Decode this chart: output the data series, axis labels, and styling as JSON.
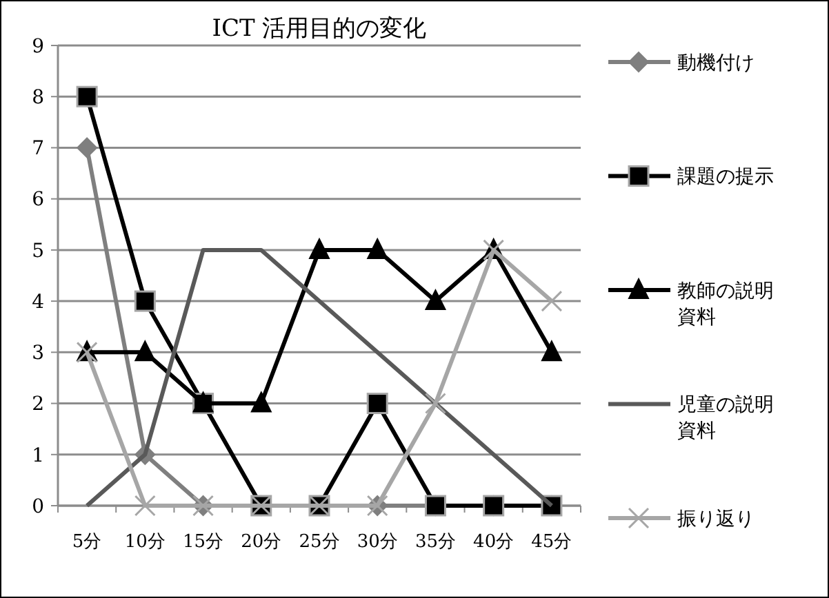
{
  "chart_data": {
    "type": "line",
    "title": "ICT 活用目的の変化",
    "categories": [
      "5分",
      "10分",
      "15分",
      "20分",
      "25分",
      "30分",
      "35分",
      "40分",
      "45分"
    ],
    "series": [
      {
        "name": "動機付け",
        "color": "#7f7f7f",
        "marker": "diamond",
        "values": [
          7,
          1,
          0,
          0,
          0,
          0,
          0,
          0,
          0
        ]
      },
      {
        "name": "課題の提示",
        "color": "#000000",
        "marker": "square",
        "values": [
          8,
          4,
          2,
          0,
          0,
          2,
          0,
          0,
          0
        ]
      },
      {
        "name": "教師の説明資料",
        "color": "#000000",
        "marker": "triangle",
        "values": [
          3,
          3,
          2,
          2,
          5,
          5,
          4,
          5,
          3
        ]
      },
      {
        "name": "児童の説明資料",
        "color": "#595959",
        "marker": "none",
        "values": [
          0,
          1,
          5,
          5,
          4,
          3,
          2,
          1,
          0
        ]
      },
      {
        "name": "振り返り",
        "color": "#a6a6a6",
        "marker": "cross",
        "values": [
          3,
          0,
          0,
          0,
          0,
          0,
          2,
          5,
          4
        ]
      }
    ],
    "ylim": [
      0,
      9
    ],
    "yticks": [
      0,
      1,
      2,
      3,
      4,
      5,
      6,
      7,
      8,
      9
    ],
    "grid": "y",
    "legend": "right"
  }
}
